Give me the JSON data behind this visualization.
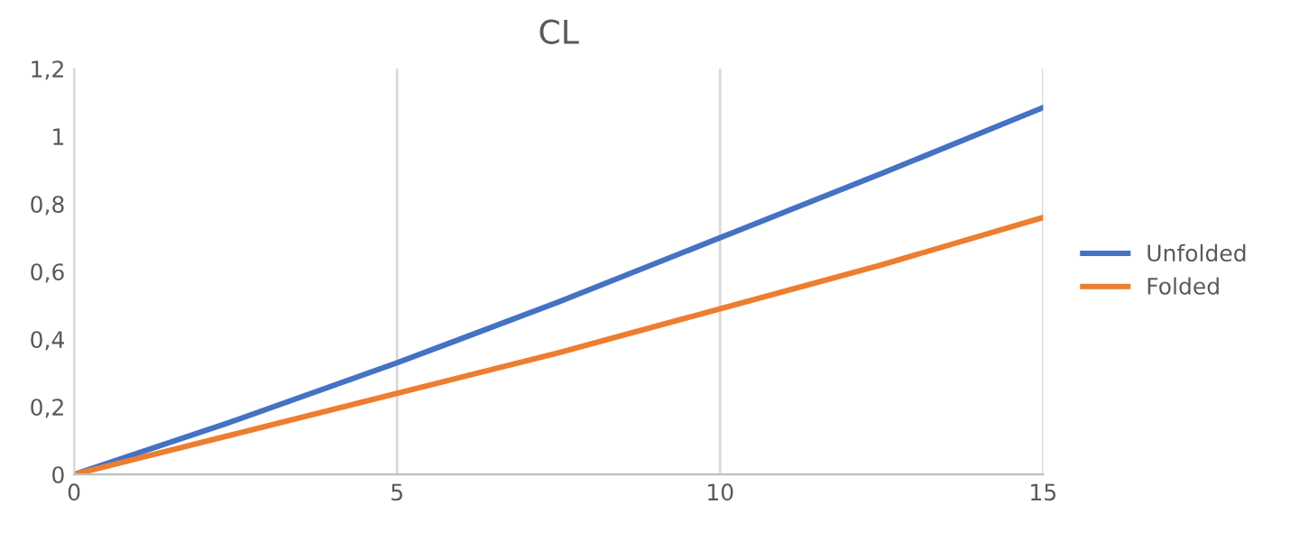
{
  "chart_data": {
    "type": "line",
    "title": "CL",
    "x": [
      0,
      2.5,
      5,
      7.5,
      10,
      12.5,
      15
    ],
    "series": [
      {
        "name": "Unfolded",
        "color": "#4472c4",
        "values": [
          0,
          0.16,
          0.33,
          0.51,
          0.7,
          0.89,
          1.085
        ]
      },
      {
        "name": "Folded",
        "color": "#ed7d31",
        "values": [
          0,
          0.12,
          0.24,
          0.36,
          0.49,
          0.62,
          0.76
        ]
      }
    ],
    "xlim": [
      0,
      15
    ],
    "xticks": [
      0,
      5,
      10,
      15
    ],
    "ylim": [
      0,
      1.2
    ],
    "yticks": [
      0,
      {
        "value": 0.2,
        "label": "0,2"
      },
      {
        "value": 0.4,
        "label": "0,4"
      },
      {
        "value": 0.6,
        "label": "0,6"
      },
      {
        "value": 0.8,
        "label": "0,8"
      },
      1,
      {
        "value": 1.2,
        "label": "1,2"
      }
    ],
    "grid": "x",
    "legend": "right",
    "marker": "none",
    "line_style": "solid"
  }
}
